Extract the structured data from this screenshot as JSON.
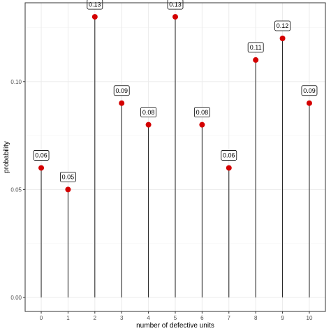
{
  "chart_data": {
    "type": "lollipop",
    "title": "",
    "xlabel": "number of defective units",
    "ylabel": "probability",
    "categories": [
      "0",
      "1",
      "2",
      "3",
      "4",
      "5",
      "6",
      "7",
      "8",
      "9",
      "10"
    ],
    "values": [
      0.06,
      0.05,
      0.13,
      0.09,
      0.08,
      0.13,
      0.08,
      0.06,
      0.11,
      0.12,
      0.09
    ],
    "data_labels": [
      "0.06",
      "0.05",
      "0.13",
      "0.09",
      "0.08",
      "0.13",
      "0.08",
      "0.06",
      "0.11",
      "0.12",
      "0.09"
    ],
    "y_ticks": [
      0.0,
      0.05,
      0.1
    ],
    "y_tick_labels": [
      "0.00",
      "0.05",
      "0.10"
    ],
    "ylim": [
      -0.0065,
      0.1365
    ],
    "grid": true,
    "legend": "none",
    "colors": {
      "point": "#d40000",
      "stem": "#1a1a1a",
      "grid_major": "#ebebeb",
      "grid_minor": "#f5f5f5",
      "panel_border": "#333333"
    }
  }
}
